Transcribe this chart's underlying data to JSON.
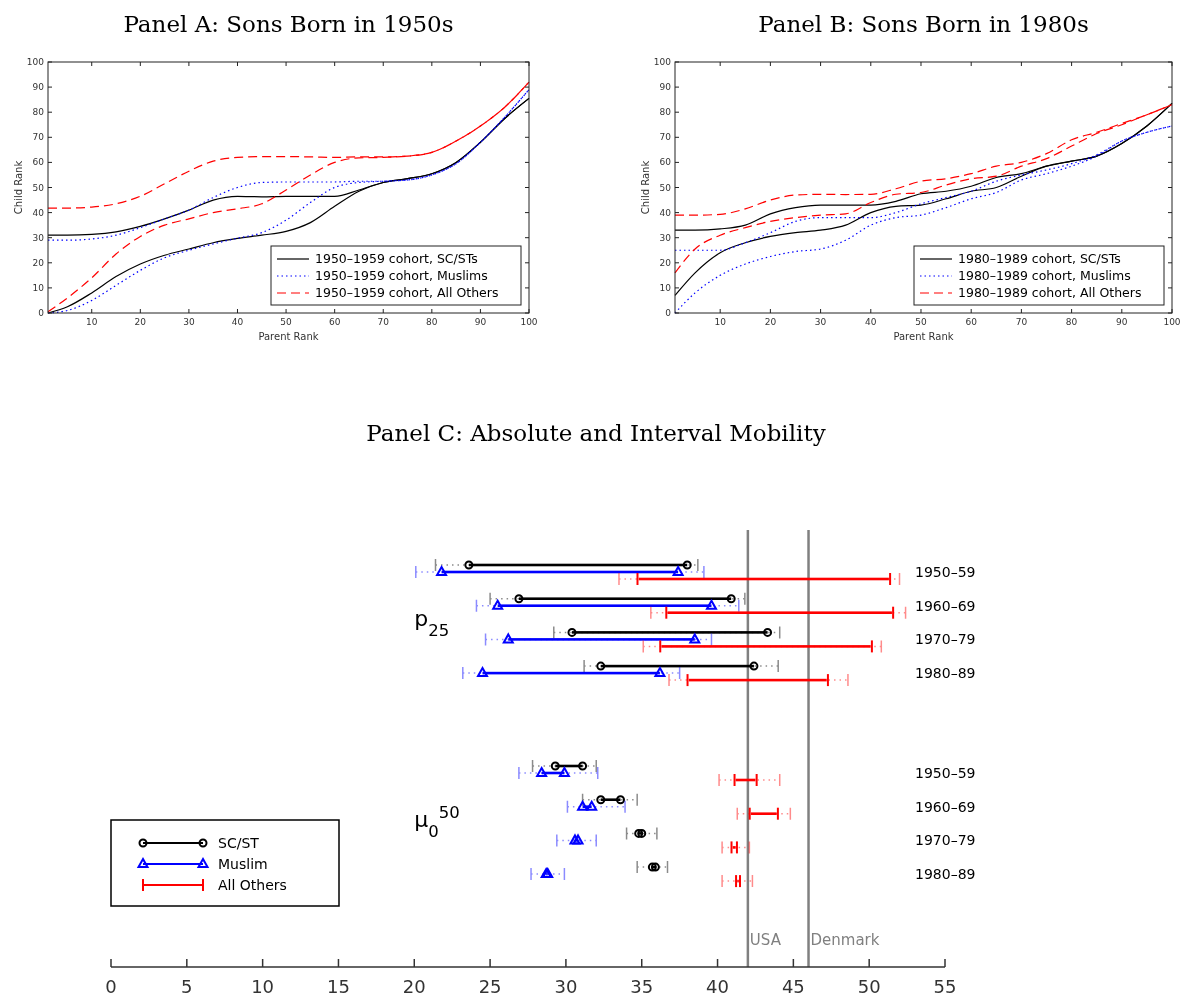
{
  "chart_data": [
    {
      "type": "line",
      "title": "Panel A: Sons Born in 1950s",
      "xlabel": "Parent Rank",
      "ylabel": "Child Rank",
      "x": [
        1,
        5,
        10,
        15,
        20,
        25,
        30,
        35,
        40,
        45,
        50,
        55,
        60,
        65,
        70,
        75,
        80,
        85,
        90,
        95,
        100
      ],
      "xlim": [
        1,
        100
      ],
      "ylim": [
        0,
        100
      ],
      "xticks": [
        10,
        20,
        30,
        40,
        50,
        60,
        70,
        80,
        90,
        100
      ],
      "yticks": [
        0,
        10,
        20,
        30,
        40,
        50,
        60,
        70,
        80,
        90,
        100
      ],
      "grid": false,
      "legend": "bottom right",
      "series": [
        {
          "name": "1950–1959 cohort, SC/STs",
          "color": "#000000",
          "line_style": "solid",
          "values": [
            31,
            31,
            31.3,
            32.3,
            34.5,
            37.5,
            41,
            45,
            46.5,
            46.3,
            46.5,
            46.5,
            46.5,
            49,
            52,
            53.5,
            55.5,
            60,
            68,
            77.5,
            85.5
          ]
        },
        {
          "color": "#000000",
          "line_style": "solid",
          "values": [
            0,
            2.5,
            8,
            14.5,
            19.5,
            23,
            25.5,
            28,
            29.7,
            31,
            32.5,
            36,
            42.5,
            48.5,
            52,
            53.5,
            55.5,
            60,
            68,
            77.5,
            85.5
          ]
        },
        {
          "name": "1950–1959 cohort, Muslims",
          "color": "#0000ff",
          "line_style": "dotted",
          "values": [
            29,
            29,
            29.5,
            31,
            34,
            37.5,
            41,
            46,
            50,
            52,
            52.2,
            52.2,
            52.2,
            52.5,
            52.5,
            53,
            55,
            59.5,
            68,
            78,
            89
          ]
        },
        {
          "color": "#0000ff",
          "line_style": "dotted",
          "values": [
            0,
            1,
            5,
            11,
            17,
            22,
            25,
            27.5,
            29.8,
            32,
            37,
            44,
            50,
            52,
            52.5,
            53,
            55,
            59.5,
            68,
            78,
            89
          ]
        },
        {
          "name": "1950–1959 cohort, All Others",
          "color": "#ff0000",
          "line_style": "dashed",
          "values": [
            41.8,
            41.8,
            42.2,
            43.5,
            46.5,
            51.5,
            56.5,
            60.5,
            62,
            62.3,
            62.3,
            62.2,
            62,
            62.2,
            62.2,
            62.5,
            64,
            68.5,
            74.5,
            82,
            92
          ]
        },
        {
          "color": "#ff0000",
          "line_style": "dashed",
          "values": [
            0.5,
            6,
            14,
            23.5,
            30.5,
            35,
            37.5,
            40,
            41.5,
            43.5,
            49,
            55,
            60,
            61.8,
            62,
            62.5,
            64,
            68.5,
            74.5,
            82,
            92
          ]
        }
      ]
    },
    {
      "type": "line",
      "title": "Panel B: Sons Born in 1980s",
      "xlabel": "Parent Rank",
      "ylabel": "Child Rank",
      "x": [
        1,
        5,
        10,
        15,
        20,
        25,
        30,
        35,
        40,
        45,
        50,
        55,
        60,
        65,
        70,
        75,
        80,
        85,
        90,
        95,
        100
      ],
      "xlim": [
        1,
        100
      ],
      "ylim": [
        0,
        100
      ],
      "xticks": [
        10,
        20,
        30,
        40,
        50,
        60,
        70,
        80,
        90,
        100
      ],
      "yticks": [
        0,
        10,
        20,
        30,
        40,
        50,
        60,
        70,
        80,
        90,
        100
      ],
      "grid": false,
      "legend": "bottom right",
      "series": [
        {
          "name": "1980–1989 cohort, SC/STs",
          "color": "#000000",
          "line_style": "solid",
          "values": [
            33,
            33,
            33.5,
            35,
            39.5,
            42,
            43,
            43,
            43,
            44.5,
            47.5,
            48.5,
            50.5,
            54,
            55.5,
            58.5,
            60.5,
            62.5,
            67.5,
            74.5,
            83.5
          ]
        },
        {
          "color": "#000000",
          "line_style": "solid",
          "values": [
            7,
            16,
            24,
            28,
            30.5,
            32,
            33,
            35,
            40,
            42.5,
            43,
            45.5,
            48.5,
            50,
            54.5,
            58.5,
            60.5,
            62.5,
            67.5,
            74.5,
            83.5
          ]
        },
        {
          "name": "1980–1989 cohort, Muslims",
          "color": "#0000ff",
          "line_style": "dotted",
          "values": [
            25,
            25,
            25,
            28,
            32,
            36.5,
            38,
            38,
            38,
            40,
            43.5,
            46,
            48.5,
            52.5,
            55,
            57,
            59.5,
            63,
            68.5,
            72,
            74.5
          ]
        },
        {
          "color": "#0000ff",
          "line_style": "dotted",
          "values": [
            0,
            8,
            15,
            19.5,
            22.5,
            24.5,
            25.5,
            29,
            35,
            38,
            39,
            42,
            45.5,
            48,
            53,
            55.5,
            58.5,
            62.5,
            68.5,
            72,
            74.5
          ]
        },
        {
          "name": "1980–1989 cohort, All Others",
          "color": "#ff0000",
          "line_style": "dashed",
          "values": [
            39,
            39,
            39.3,
            41.5,
            45,
            47,
            47.3,
            47.2,
            47.3,
            49.5,
            52.5,
            53.5,
            55.5,
            58.5,
            60,
            63.5,
            69,
            72,
            75.5,
            79,
            83
          ]
        },
        {
          "color": "#ff0000",
          "line_style": "dashed",
          "values": [
            16,
            25.5,
            31,
            34,
            36.5,
            38,
            39,
            39.5,
            44,
            47.3,
            48,
            51,
            53.5,
            54.5,
            58.5,
            61.5,
            66.5,
            71.5,
            75,
            79,
            83
          ]
        }
      ]
    },
    {
      "type": "bar",
      "orientation": "horizontal",
      "title": "Panel C: Absolute and Interval Mobility",
      "categories": [
        "1950–59",
        "1960–69",
        "1970–79",
        "1980–89",
        "1950–59",
        "1960–69",
        "1970–79",
        "1980–89"
      ],
      "annotations": [
        "p$_{25}$",
        "μ$_{0}$$^{50}$"
      ],
      "xlim": [
        0,
        55
      ],
      "xticks": [
        0,
        5,
        10,
        15,
        20,
        25,
        30,
        35,
        40,
        45,
        50,
        55
      ],
      "grid": false,
      "legend": "left",
      "ref_lines": [
        {
          "axis": "x",
          "value": 42,
          "label": "USA",
          "color": "#808080"
        },
        {
          "axis": "x",
          "value": 46,
          "label": "Denmark",
          "color": "#808080"
        }
      ],
      "series": [
        {
          "name": "SC/ST",
          "color": "#000000",
          "marker": "circle",
          "base": [
            23.6,
            26.9,
            30.4,
            32.3,
            29.3,
            32.3,
            34.8,
            35.7
          ],
          "values": [
            14.4,
            14.0,
            12.9,
            10.1,
            1.8,
            1.3,
            0.2,
            0.2
          ],
          "errors": [
            [
              21.4,
              38.7
            ],
            [
              25.0,
              41.8
            ],
            [
              29.2,
              44.1
            ],
            [
              31.2,
              44.0
            ],
            [
              27.8,
              32.0
            ],
            [
              31.1,
              34.7
            ],
            [
              34.0,
              36.0
            ],
            [
              34.7,
              36.7
            ]
          ]
        },
        {
          "name": "Muslim",
          "color": "#0000ff",
          "marker": "triangle",
          "base": [
            21.8,
            25.5,
            26.2,
            24.5,
            28.4,
            31.1,
            30.6,
            28.7
          ],
          "values": [
            15.6,
            14.1,
            12.3,
            11.7,
            1.5,
            0.6,
            0.2,
            0.1
          ],
          "errors": [
            [
              20.1,
              39.1
            ],
            [
              24.1,
              41.4
            ],
            [
              24.7,
              39.6
            ],
            [
              23.2,
              37.5
            ],
            [
              26.9,
              32.1
            ],
            [
              30.1,
              33.9
            ],
            [
              29.4,
              32.0
            ],
            [
              27.7,
              29.9
            ]
          ]
        },
        {
          "name": "All Others",
          "color": "#ff0000",
          "marker": "none",
          "base": [
            34.8,
            36.7,
            36.3,
            38.1,
            41.2,
            42.2,
            41.0,
            41.3
          ],
          "values": [
            16.5,
            14.8,
            13.8,
            9.1,
            1.3,
            1.7,
            0.2,
            0.1
          ],
          "errors": [
            [
              33.5,
              52.0
            ],
            [
              35.6,
              52.4
            ],
            [
              35.1,
              50.8
            ],
            [
              36.8,
              48.6
            ],
            [
              40.1,
              44.1
            ],
            [
              41.3,
              44.8
            ],
            [
              40.3,
              42.1
            ],
            [
              40.3,
              42.3
            ]
          ]
        }
      ]
    }
  ]
}
